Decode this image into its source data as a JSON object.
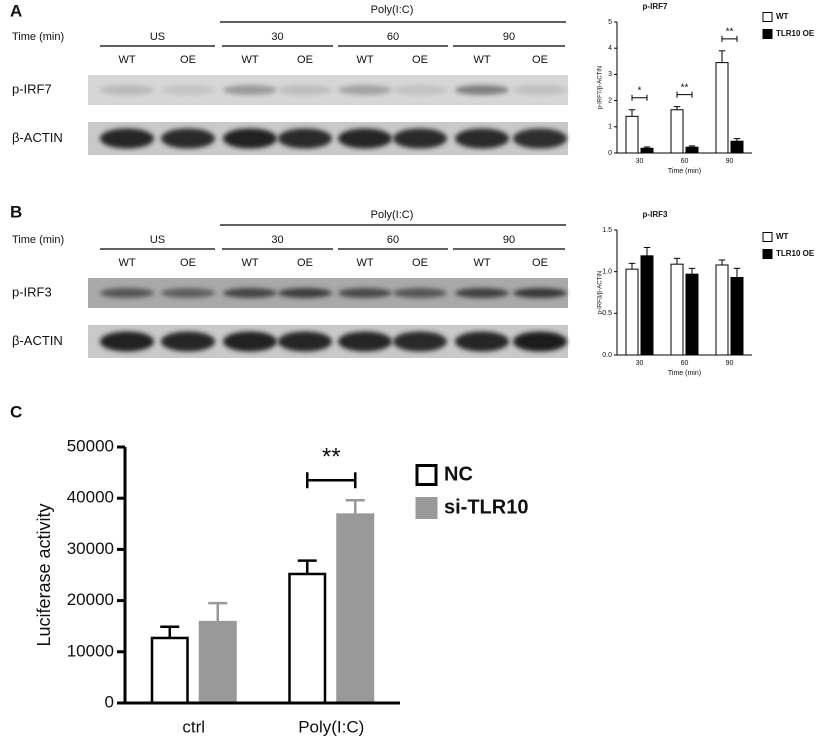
{
  "panel_labels": [
    "A",
    "B",
    "C"
  ],
  "blots": [
    {
      "header": "Poly(I:C)",
      "time_label": "Time (min)",
      "groups": [
        "US",
        "30",
        "60",
        "90"
      ],
      "lanes": [
        "WT",
        "OE",
        "WT",
        "OE",
        "WT",
        "OE",
        "WT",
        "OE"
      ],
      "rows": [
        "p-IRF7",
        "β-ACTIN"
      ]
    },
    {
      "header": "Poly(I:C)",
      "time_label": "Time (min)",
      "groups": [
        "US",
        "30",
        "60",
        "90"
      ],
      "lanes": [
        "WT",
        "OE",
        "WT",
        "OE",
        "WT",
        "OE",
        "WT",
        "OE"
      ],
      "rows": [
        "p-IRF3",
        "β-ACTIN"
      ]
    }
  ],
  "chart_data": [
    {
      "type": "bar",
      "title": "p-IRF7",
      "x_label": "Time (min)",
      "y_label": "p-IRF7/β-ACTIN",
      "categories": [
        "30",
        "60",
        "90"
      ],
      "series": [
        {
          "name": "WT",
          "color": "#ffffff",
          "edgecolor": "#000000",
          "values": [
            1.4,
            1.65,
            3.45
          ],
          "errors": [
            0.25,
            0.12,
            0.45
          ]
        },
        {
          "name": "TLR10 OE",
          "color": "#000000",
          "edgecolor": "#000000",
          "values": [
            0.18,
            0.22,
            0.45
          ],
          "errors": [
            0.05,
            0.05,
            0.1
          ]
        }
      ],
      "significance": [
        "*",
        "**",
        "**"
      ],
      "ylim": [
        0,
        5
      ],
      "yticks": [
        0,
        1,
        2,
        3,
        4,
        5
      ],
      "legend": "right"
    },
    {
      "type": "bar",
      "title": "p-IRF3",
      "x_label": "Time (min)",
      "y_label": "p-IRF3/β-ACTIN",
      "categories": [
        "30",
        "60",
        "90"
      ],
      "series": [
        {
          "name": "WT",
          "color": "#ffffff",
          "edgecolor": "#000000",
          "values": [
            1.03,
            1.09,
            1.08
          ],
          "errors": [
            0.07,
            0.07,
            0.06
          ]
        },
        {
          "name": "TLR10 OE",
          "color": "#000000",
          "edgecolor": "#000000",
          "values": [
            1.19,
            0.97,
            0.93
          ],
          "errors": [
            0.1,
            0.07,
            0.11
          ]
        }
      ],
      "ylim": [
        0,
        1.5
      ],
      "yticks": [
        {
          "value": 0,
          "label": "0.0"
        },
        {
          "value": 0.5,
          "label": "0.5"
        },
        {
          "value": 1,
          "label": "1.0"
        },
        {
          "value": 1.5,
          "label": "1.5"
        }
      ],
      "legend": "right"
    },
    {
      "type": "bar",
      "y_label": "Luciferase activity",
      "categories": [
        "ctrl",
        "Poly(I:C)"
      ],
      "series": [
        {
          "name": "NC",
          "color": "#ffffff",
          "edgecolor": "#000000",
          "values": [
            12700,
            25200
          ],
          "errors": [
            2200,
            2600
          ]
        },
        {
          "name": "si-TLR10",
          "color": "#999999",
          "edgecolor": "#999999",
          "values": [
            15800,
            36800
          ],
          "errors": [
            3700,
            2800
          ]
        }
      ],
      "significance": [
        null,
        "**"
      ],
      "ylim": [
        0,
        50000
      ],
      "yticks": [
        0,
        10000,
        20000,
        30000,
        40000,
        50000
      ],
      "legend": "right"
    }
  ]
}
